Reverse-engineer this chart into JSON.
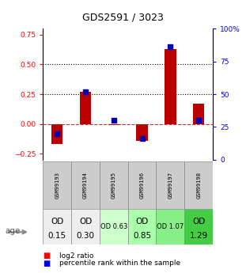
{
  "title": "GDS2591 / 3023",
  "samples": [
    "GSM99193",
    "GSM99194",
    "GSM99195",
    "GSM99196",
    "GSM99197",
    "GSM99198"
  ],
  "log2_ratio": [
    -0.17,
    0.27,
    -0.01,
    -0.14,
    0.63,
    0.17
  ],
  "percentile_rank": [
    20,
    52,
    30,
    16,
    86,
    30
  ],
  "age_labels_line1": [
    "OD",
    "OD",
    "OD 0.63",
    "OD",
    "OD 1.07",
    "OD"
  ],
  "age_labels_line2": [
    "0.15",
    "0.30",
    "",
    "0.85",
    "",
    "1.29"
  ],
  "age_big": [
    true,
    true,
    false,
    true,
    false,
    true
  ],
  "age_colors": [
    "#eeeeee",
    "#eeeeee",
    "#ccffcc",
    "#aaffaa",
    "#88ee88",
    "#44cc44"
  ],
  "bar_color": "#bb0000",
  "dot_color": "#0000bb",
  "ylim_left": [
    -0.3,
    0.8
  ],
  "ylim_right": [
    0,
    100
  ],
  "yticks_left": [
    -0.25,
    0.0,
    0.25,
    0.5,
    0.75
  ],
  "yticks_right": [
    0,
    25,
    50,
    75,
    100
  ],
  "background_color": "#ffffff"
}
